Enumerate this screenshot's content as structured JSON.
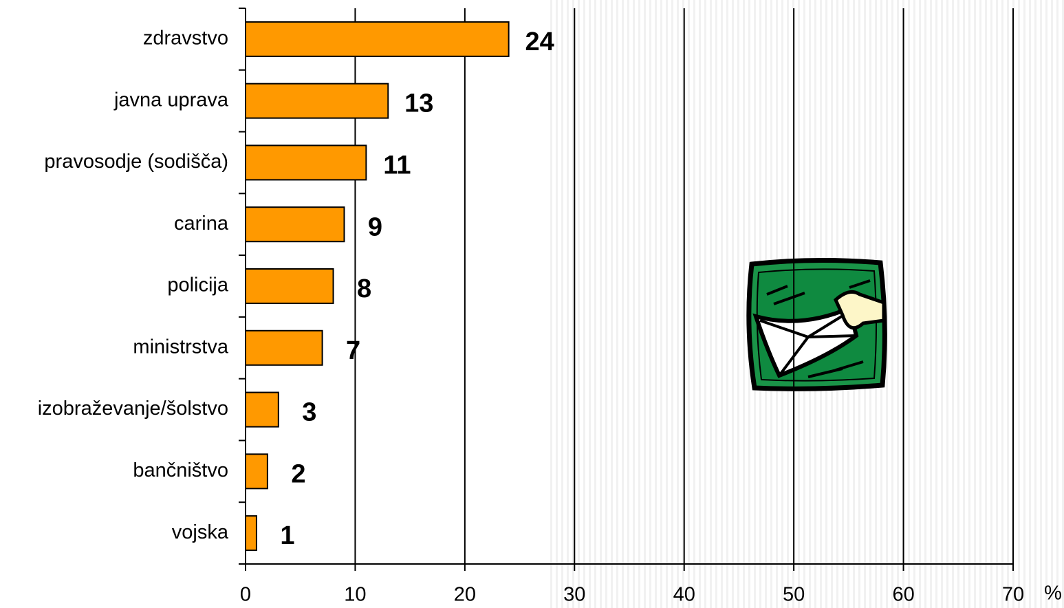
{
  "chart_data": {
    "type": "bar",
    "orientation": "horizontal",
    "categories": [
      "zdravstvo",
      "javna uprava",
      "pravosodje (sodišča)",
      "carina",
      "policija",
      "ministrstva",
      "izobraževanje/šolstvo",
      "bančništvo",
      "vojska"
    ],
    "values": [
      24,
      13,
      11,
      9,
      8,
      7,
      3,
      2,
      1
    ],
    "color": "#ff9900",
    "xlim": [
      0,
      70
    ],
    "xticks": [
      0,
      10,
      20,
      30,
      40,
      50,
      60,
      70
    ],
    "x_label": "%",
    "grid": true
  }
}
